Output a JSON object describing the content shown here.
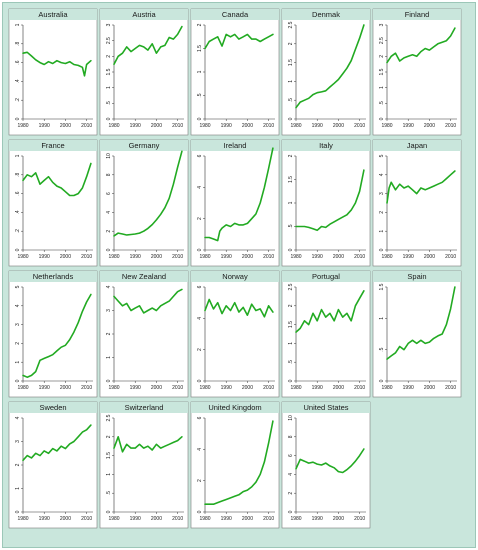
{
  "chart_data": [
    {
      "type": "line",
      "title": "Australia",
      "xlim": [
        1980,
        2013
      ],
      "ylim": [
        0,
        1
      ],
      "yticks": [
        0,
        0.2,
        0.4,
        0.6,
        0.8,
        1
      ],
      "ytick_labels": [
        "0",
        ".2",
        ".4",
        ".6",
        ".8",
        "1"
      ],
      "xticks": [
        1980,
        1990,
        2000,
        2010
      ],
      "x": [
        1980,
        1982,
        1984,
        1986,
        1988,
        1990,
        1992,
        1994,
        1996,
        1998,
        2000,
        2002,
        2004,
        2006,
        2008,
        2009,
        2010,
        2012
      ],
      "values": [
        0.7,
        0.71,
        0.67,
        0.63,
        0.6,
        0.58,
        0.61,
        0.59,
        0.62,
        0.6,
        0.59,
        0.61,
        0.58,
        0.57,
        0.55,
        0.46,
        0.58,
        0.62
      ]
    },
    {
      "type": "line",
      "title": "Austria",
      "xlim": [
        1980,
        2013
      ],
      "ylim": [
        0,
        3
      ],
      "yticks": [
        0,
        0.5,
        1,
        1.5,
        2,
        2.5,
        3
      ],
      "ytick_labels": [
        "0",
        ".5",
        "1",
        "1.5",
        "2",
        "2.5",
        "3"
      ],
      "xticks": [
        1980,
        1990,
        2000,
        2010
      ],
      "x": [
        1980,
        1982,
        1984,
        1986,
        1988,
        1990,
        1992,
        1994,
        1996,
        1998,
        2000,
        2002,
        2004,
        2006,
        2008,
        2010,
        2012
      ],
      "values": [
        1.75,
        2.0,
        2.1,
        2.3,
        2.15,
        2.25,
        2.35,
        2.3,
        2.2,
        2.4,
        2.1,
        2.3,
        2.35,
        2.6,
        2.55,
        2.7,
        2.95
      ]
    },
    {
      "type": "line",
      "title": "Canada",
      "xlim": [
        1980,
        2013
      ],
      "ylim": [
        0,
        2
      ],
      "yticks": [
        0,
        0.5,
        1,
        1.5,
        2
      ],
      "ytick_labels": [
        "0",
        ".5",
        "1",
        "1.5",
        "2"
      ],
      "xticks": [
        1980,
        1990,
        2000,
        2010
      ],
      "x": [
        1980,
        1982,
        1984,
        1986,
        1988,
        1990,
        1992,
        1994,
        1996,
        1998,
        2000,
        2002,
        2004,
        2006,
        2008,
        2010,
        2012
      ],
      "values": [
        1.5,
        1.65,
        1.7,
        1.75,
        1.55,
        1.8,
        1.75,
        1.8,
        1.7,
        1.75,
        1.8,
        1.7,
        1.7,
        1.65,
        1.7,
        1.75,
        1.8
      ]
    },
    {
      "type": "line",
      "title": "Denmak",
      "xlim": [
        1980,
        2013
      ],
      "ylim": [
        0,
        2.5
      ],
      "yticks": [
        0,
        0.5,
        1,
        1.5,
        2,
        2.5
      ],
      "ytick_labels": [
        "0",
        ".5",
        "1",
        "1.5",
        "2",
        "2.5"
      ],
      "xticks": [
        1980,
        1990,
        2000,
        2010
      ],
      "x": [
        1980,
        1982,
        1984,
        1986,
        1988,
        1990,
        1992,
        1994,
        1996,
        1998,
        2000,
        2002,
        2004,
        2006,
        2008,
        2010,
        2012
      ],
      "values": [
        0.3,
        0.45,
        0.5,
        0.55,
        0.65,
        0.7,
        0.72,
        0.75,
        0.85,
        0.95,
        1.05,
        1.2,
        1.35,
        1.55,
        1.85,
        2.15,
        2.5
      ]
    },
    {
      "type": "line",
      "title": "Finland",
      "xlim": [
        1980,
        2013
      ],
      "ylim": [
        0,
        3
      ],
      "yticks": [
        0,
        0.5,
        1,
        1.5,
        2,
        2.5,
        3
      ],
      "ytick_labels": [
        "0",
        ".5",
        "1",
        "1.5",
        "2",
        "2.5",
        "3"
      ],
      "xticks": [
        1980,
        1990,
        2000,
        2010
      ],
      "x": [
        1980,
        1982,
        1984,
        1986,
        1988,
        1990,
        1992,
        1994,
        1996,
        1998,
        2000,
        2002,
        2004,
        2006,
        2008,
        2010,
        2012
      ],
      "values": [
        1.8,
        2.0,
        2.1,
        1.85,
        1.95,
        2.0,
        2.05,
        2.0,
        2.15,
        2.25,
        2.2,
        2.3,
        2.4,
        2.45,
        2.5,
        2.65,
        2.9
      ]
    },
    {
      "type": "line",
      "title": "France",
      "xlim": [
        1980,
        2013
      ],
      "ylim": [
        0,
        1
      ],
      "yticks": [
        0,
        0.2,
        0.4,
        0.6,
        0.8,
        1
      ],
      "ytick_labels": [
        "0",
        ".2",
        ".4",
        ".6",
        ".8",
        "1"
      ],
      "xticks": [
        1980,
        1990,
        2000,
        2010
      ],
      "x": [
        1980,
        1982,
        1984,
        1986,
        1988,
        1990,
        1992,
        1994,
        1996,
        1998,
        2000,
        2002,
        2004,
        2006,
        2008,
        2010,
        2012
      ],
      "values": [
        0.74,
        0.8,
        0.78,
        0.82,
        0.7,
        0.74,
        0.78,
        0.72,
        0.68,
        0.66,
        0.62,
        0.58,
        0.58,
        0.6,
        0.66,
        0.78,
        0.92
      ]
    },
    {
      "type": "line",
      "title": "Germany",
      "xlim": [
        1980,
        2013
      ],
      "ylim": [
        0,
        10
      ],
      "yticks": [
        0,
        2,
        4,
        6,
        8,
        10
      ],
      "ytick_labels": [
        "0",
        "2",
        "4",
        "6",
        "8",
        "10"
      ],
      "xticks": [
        1980,
        1990,
        2000,
        2010
      ],
      "x": [
        1980,
        1982,
        1984,
        1986,
        1988,
        1990,
        1992,
        1994,
        1996,
        1998,
        2000,
        2002,
        2004,
        2006,
        2008,
        2010,
        2012
      ],
      "values": [
        1.5,
        1.8,
        1.7,
        1.6,
        1.65,
        1.7,
        1.8,
        2.0,
        2.3,
        2.7,
        3.2,
        3.8,
        4.5,
        5.5,
        7.0,
        8.8,
        10.5
      ]
    },
    {
      "type": "line",
      "title": "Ireland",
      "xlim": [
        1980,
        2013
      ],
      "ylim": [
        0,
        6
      ],
      "yticks": [
        0,
        2,
        4,
        6
      ],
      "ytick_labels": [
        "0",
        "2",
        "4",
        "6"
      ],
      "xticks": [
        1980,
        1990,
        2000,
        2010
      ],
      "x": [
        1980,
        1982,
        1984,
        1986,
        1987,
        1988,
        1990,
        1992,
        1994,
        1996,
        1998,
        2000,
        2002,
        2004,
        2006,
        2008,
        2010,
        2012
      ],
      "values": [
        0.8,
        0.8,
        0.7,
        0.6,
        1.2,
        1.4,
        1.6,
        1.5,
        1.7,
        1.6,
        1.6,
        1.7,
        2.0,
        2.3,
        3.0,
        4.0,
        5.2,
        6.5
      ]
    },
    {
      "type": "line",
      "title": "Italy",
      "xlim": [
        1980,
        2013
      ],
      "ylim": [
        0,
        2
      ],
      "yticks": [
        0,
        0.5,
        1,
        1.5,
        2
      ],
      "ytick_labels": [
        "0",
        ".5",
        "1",
        "1.5",
        "2"
      ],
      "xticks": [
        1980,
        1990,
        2000,
        2010
      ],
      "x": [
        1980,
        1982,
        1984,
        1986,
        1988,
        1990,
        1992,
        1994,
        1996,
        1998,
        2000,
        2002,
        2004,
        2006,
        2008,
        2010,
        2012
      ],
      "values": [
        0.5,
        0.5,
        0.5,
        0.48,
        0.45,
        0.42,
        0.5,
        0.48,
        0.55,
        0.6,
        0.65,
        0.7,
        0.75,
        0.85,
        1.0,
        1.25,
        1.7
      ]
    },
    {
      "type": "line",
      "title": "Japan",
      "xlim": [
        1980,
        2013
      ],
      "ylim": [
        0,
        5
      ],
      "yticks": [
        0,
        1,
        2,
        3,
        4,
        5
      ],
      "ytick_labels": [
        "0",
        "1",
        "2",
        "3",
        "4",
        "5"
      ],
      "xticks": [
        1980,
        1990,
        2000,
        2010
      ],
      "x": [
        1980,
        1981,
        1982,
        1984,
        1986,
        1988,
        1990,
        1992,
        1994,
        1996,
        1998,
        2000,
        2002,
        2004,
        2006,
        2008,
        2010,
        2012
      ],
      "values": [
        2.5,
        3.3,
        3.6,
        3.2,
        3.5,
        3.3,
        3.4,
        3.2,
        3.0,
        3.3,
        3.2,
        3.3,
        3.4,
        3.5,
        3.6,
        3.8,
        4.0,
        4.2
      ]
    },
    {
      "type": "line",
      "title": "Netherlands",
      "xlim": [
        1980,
        2013
      ],
      "ylim": [
        0,
        5
      ],
      "yticks": [
        0,
        1,
        2,
        3,
        4,
        5
      ],
      "ytick_labels": [
        "0",
        "1",
        "2",
        "3",
        "4",
        "5"
      ],
      "xticks": [
        1980,
        1990,
        2000,
        2010
      ],
      "x": [
        1980,
        1982,
        1984,
        1986,
        1988,
        1990,
        1992,
        1994,
        1996,
        1998,
        2000,
        2002,
        2004,
        2006,
        2008,
        2010,
        2012
      ],
      "values": [
        0.3,
        0.2,
        0.3,
        0.5,
        1.1,
        1.2,
        1.3,
        1.4,
        1.6,
        1.8,
        1.9,
        2.2,
        2.6,
        3.1,
        3.7,
        4.2,
        4.6
      ]
    },
    {
      "type": "line",
      "title": "New Zealand",
      "xlim": [
        1980,
        2013
      ],
      "ylim": [
        0,
        4
      ],
      "yticks": [
        0,
        1,
        2,
        3,
        4
      ],
      "ytick_labels": [
        "0",
        "1",
        "2",
        "3",
        "4"
      ],
      "xticks": [
        1980,
        1990,
        2000,
        2010
      ],
      "x": [
        1980,
        1982,
        1984,
        1986,
        1988,
        1990,
        1992,
        1994,
        1996,
        1998,
        2000,
        2002,
        2004,
        2006,
        2008,
        2010,
        2012
      ],
      "values": [
        3.6,
        3.4,
        3.2,
        3.3,
        3.0,
        3.1,
        3.2,
        2.9,
        3.0,
        3.1,
        3.0,
        3.2,
        3.3,
        3.4,
        3.6,
        3.8,
        3.9
      ]
    },
    {
      "type": "line",
      "title": "Norway",
      "xlim": [
        1980,
        2013
      ],
      "ylim": [
        0,
        6
      ],
      "yticks": [
        0,
        2,
        4,
        6
      ],
      "ytick_labels": [
        "0",
        "2",
        "4",
        "6"
      ],
      "xticks": [
        1980,
        1990,
        2000,
        2010
      ],
      "x": [
        1980,
        1982,
        1984,
        1986,
        1988,
        1990,
        1992,
        1994,
        1996,
        1998,
        2000,
        2002,
        2004,
        2006,
        2008,
        2010,
        2012
      ],
      "values": [
        4.5,
        5.2,
        4.6,
        5.0,
        4.3,
        4.8,
        4.5,
        5.0,
        4.4,
        4.7,
        4.2,
        4.9,
        4.5,
        4.6,
        4.1,
        4.8,
        4.4
      ]
    },
    {
      "type": "line",
      "title": "Portugal",
      "xlim": [
        1980,
        2013
      ],
      "ylim": [
        0,
        2.5
      ],
      "yticks": [
        0,
        0.5,
        1,
        1.5,
        2,
        2.5
      ],
      "ytick_labels": [
        "0",
        ".5",
        "1",
        "1.5",
        "2",
        "2.5"
      ],
      "xticks": [
        1980,
        1990,
        2000,
        2010
      ],
      "x": [
        1980,
        1982,
        1984,
        1986,
        1988,
        1990,
        1992,
        1994,
        1996,
        1998,
        2000,
        2002,
        2004,
        2006,
        2008,
        2010,
        2012
      ],
      "values": [
        1.3,
        1.4,
        1.6,
        1.5,
        1.8,
        1.6,
        1.9,
        1.7,
        1.8,
        1.6,
        1.9,
        1.7,
        1.8,
        1.6,
        2.0,
        2.2,
        2.4
      ]
    },
    {
      "type": "line",
      "title": "Spain",
      "xlim": [
        1980,
        2013
      ],
      "ylim": [
        0,
        1.5
      ],
      "yticks": [
        0,
        0.5,
        1,
        1.5
      ],
      "ytick_labels": [
        "0",
        ".5",
        "1",
        "1.5"
      ],
      "xticks": [
        1980,
        1990,
        2000,
        2010
      ],
      "x": [
        1980,
        1982,
        1984,
        1986,
        1988,
        1990,
        1992,
        1994,
        1996,
        1998,
        2000,
        2002,
        2004,
        2006,
        2008,
        2010,
        2012
      ],
      "values": [
        0.35,
        0.4,
        0.45,
        0.55,
        0.5,
        0.6,
        0.65,
        0.6,
        0.65,
        0.6,
        0.62,
        0.68,
        0.72,
        0.75,
        0.9,
        1.15,
        1.5
      ]
    },
    {
      "type": "line",
      "title": "Sweden",
      "xlim": [
        1980,
        2013
      ],
      "ylim": [
        0,
        4
      ],
      "yticks": [
        0,
        1,
        2,
        3,
        4
      ],
      "ytick_labels": [
        "0",
        "1",
        "2",
        "3",
        "4"
      ],
      "xticks": [
        1980,
        1990,
        2000,
        2010
      ],
      "x": [
        1980,
        1982,
        1984,
        1986,
        1988,
        1990,
        1992,
        1994,
        1996,
        1998,
        2000,
        2002,
        2004,
        2006,
        2008,
        2010,
        2012
      ],
      "values": [
        2.2,
        2.4,
        2.3,
        2.5,
        2.4,
        2.6,
        2.5,
        2.7,
        2.6,
        2.8,
        2.7,
        2.9,
        3.0,
        3.2,
        3.4,
        3.5,
        3.7
      ]
    },
    {
      "type": "line",
      "title": "Switzerland",
      "xlim": [
        1980,
        2013
      ],
      "ylim": [
        0,
        2.5
      ],
      "yticks": [
        0,
        0.5,
        1,
        1.5,
        2,
        2.5
      ],
      "ytick_labels": [
        "0",
        ".5",
        "1",
        "1.5",
        "2",
        "2.5"
      ],
      "xticks": [
        1980,
        1990,
        2000,
        2010
      ],
      "x": [
        1980,
        1982,
        1984,
        1986,
        1988,
        1990,
        1992,
        1994,
        1996,
        1998,
        2000,
        2002,
        2004,
        2006,
        2008,
        2010,
        2012
      ],
      "values": [
        1.7,
        2.0,
        1.6,
        1.8,
        1.7,
        1.7,
        1.8,
        1.7,
        1.75,
        1.65,
        1.8,
        1.7,
        1.75,
        1.8,
        1.85,
        1.9,
        2.0
      ]
    },
    {
      "type": "line",
      "title": "United Kingdom",
      "xlim": [
        1980,
        2013
      ],
      "ylim": [
        0,
        6
      ],
      "yticks": [
        0,
        2,
        4,
        6
      ],
      "ytick_labels": [
        "0",
        "2",
        "4",
        "6"
      ],
      "xticks": [
        1980,
        1990,
        2000,
        2010
      ],
      "x": [
        1980,
        1982,
        1984,
        1986,
        1988,
        1990,
        1992,
        1994,
        1996,
        1998,
        2000,
        2002,
        2004,
        2006,
        2008,
        2010,
        2012
      ],
      "values": [
        0.5,
        0.5,
        0.5,
        0.6,
        0.7,
        0.8,
        0.9,
        1.0,
        1.1,
        1.3,
        1.4,
        1.6,
        1.9,
        2.4,
        3.2,
        4.4,
        5.8
      ]
    },
    {
      "type": "line",
      "title": "United States",
      "xlim": [
        1980,
        2013
      ],
      "ylim": [
        0,
        10
      ],
      "yticks": [
        0,
        2,
        4,
        6,
        8,
        10
      ],
      "ytick_labels": [
        "0",
        "2",
        "4",
        "6",
        "8",
        "10"
      ],
      "xticks": [
        1980,
        1990,
        2000,
        2010
      ],
      "x": [
        1980,
        1982,
        1984,
        1986,
        1988,
        1990,
        1992,
        1994,
        1996,
        1998,
        2000,
        2002,
        2004,
        2006,
        2008,
        2010,
        2012
      ],
      "values": [
        4.6,
        5.6,
        5.4,
        5.2,
        5.3,
        5.1,
        5.0,
        5.2,
        4.9,
        4.7,
        4.3,
        4.2,
        4.5,
        4.9,
        5.4,
        6.0,
        6.7
      ]
    }
  ],
  "line_color": "#22aa22"
}
